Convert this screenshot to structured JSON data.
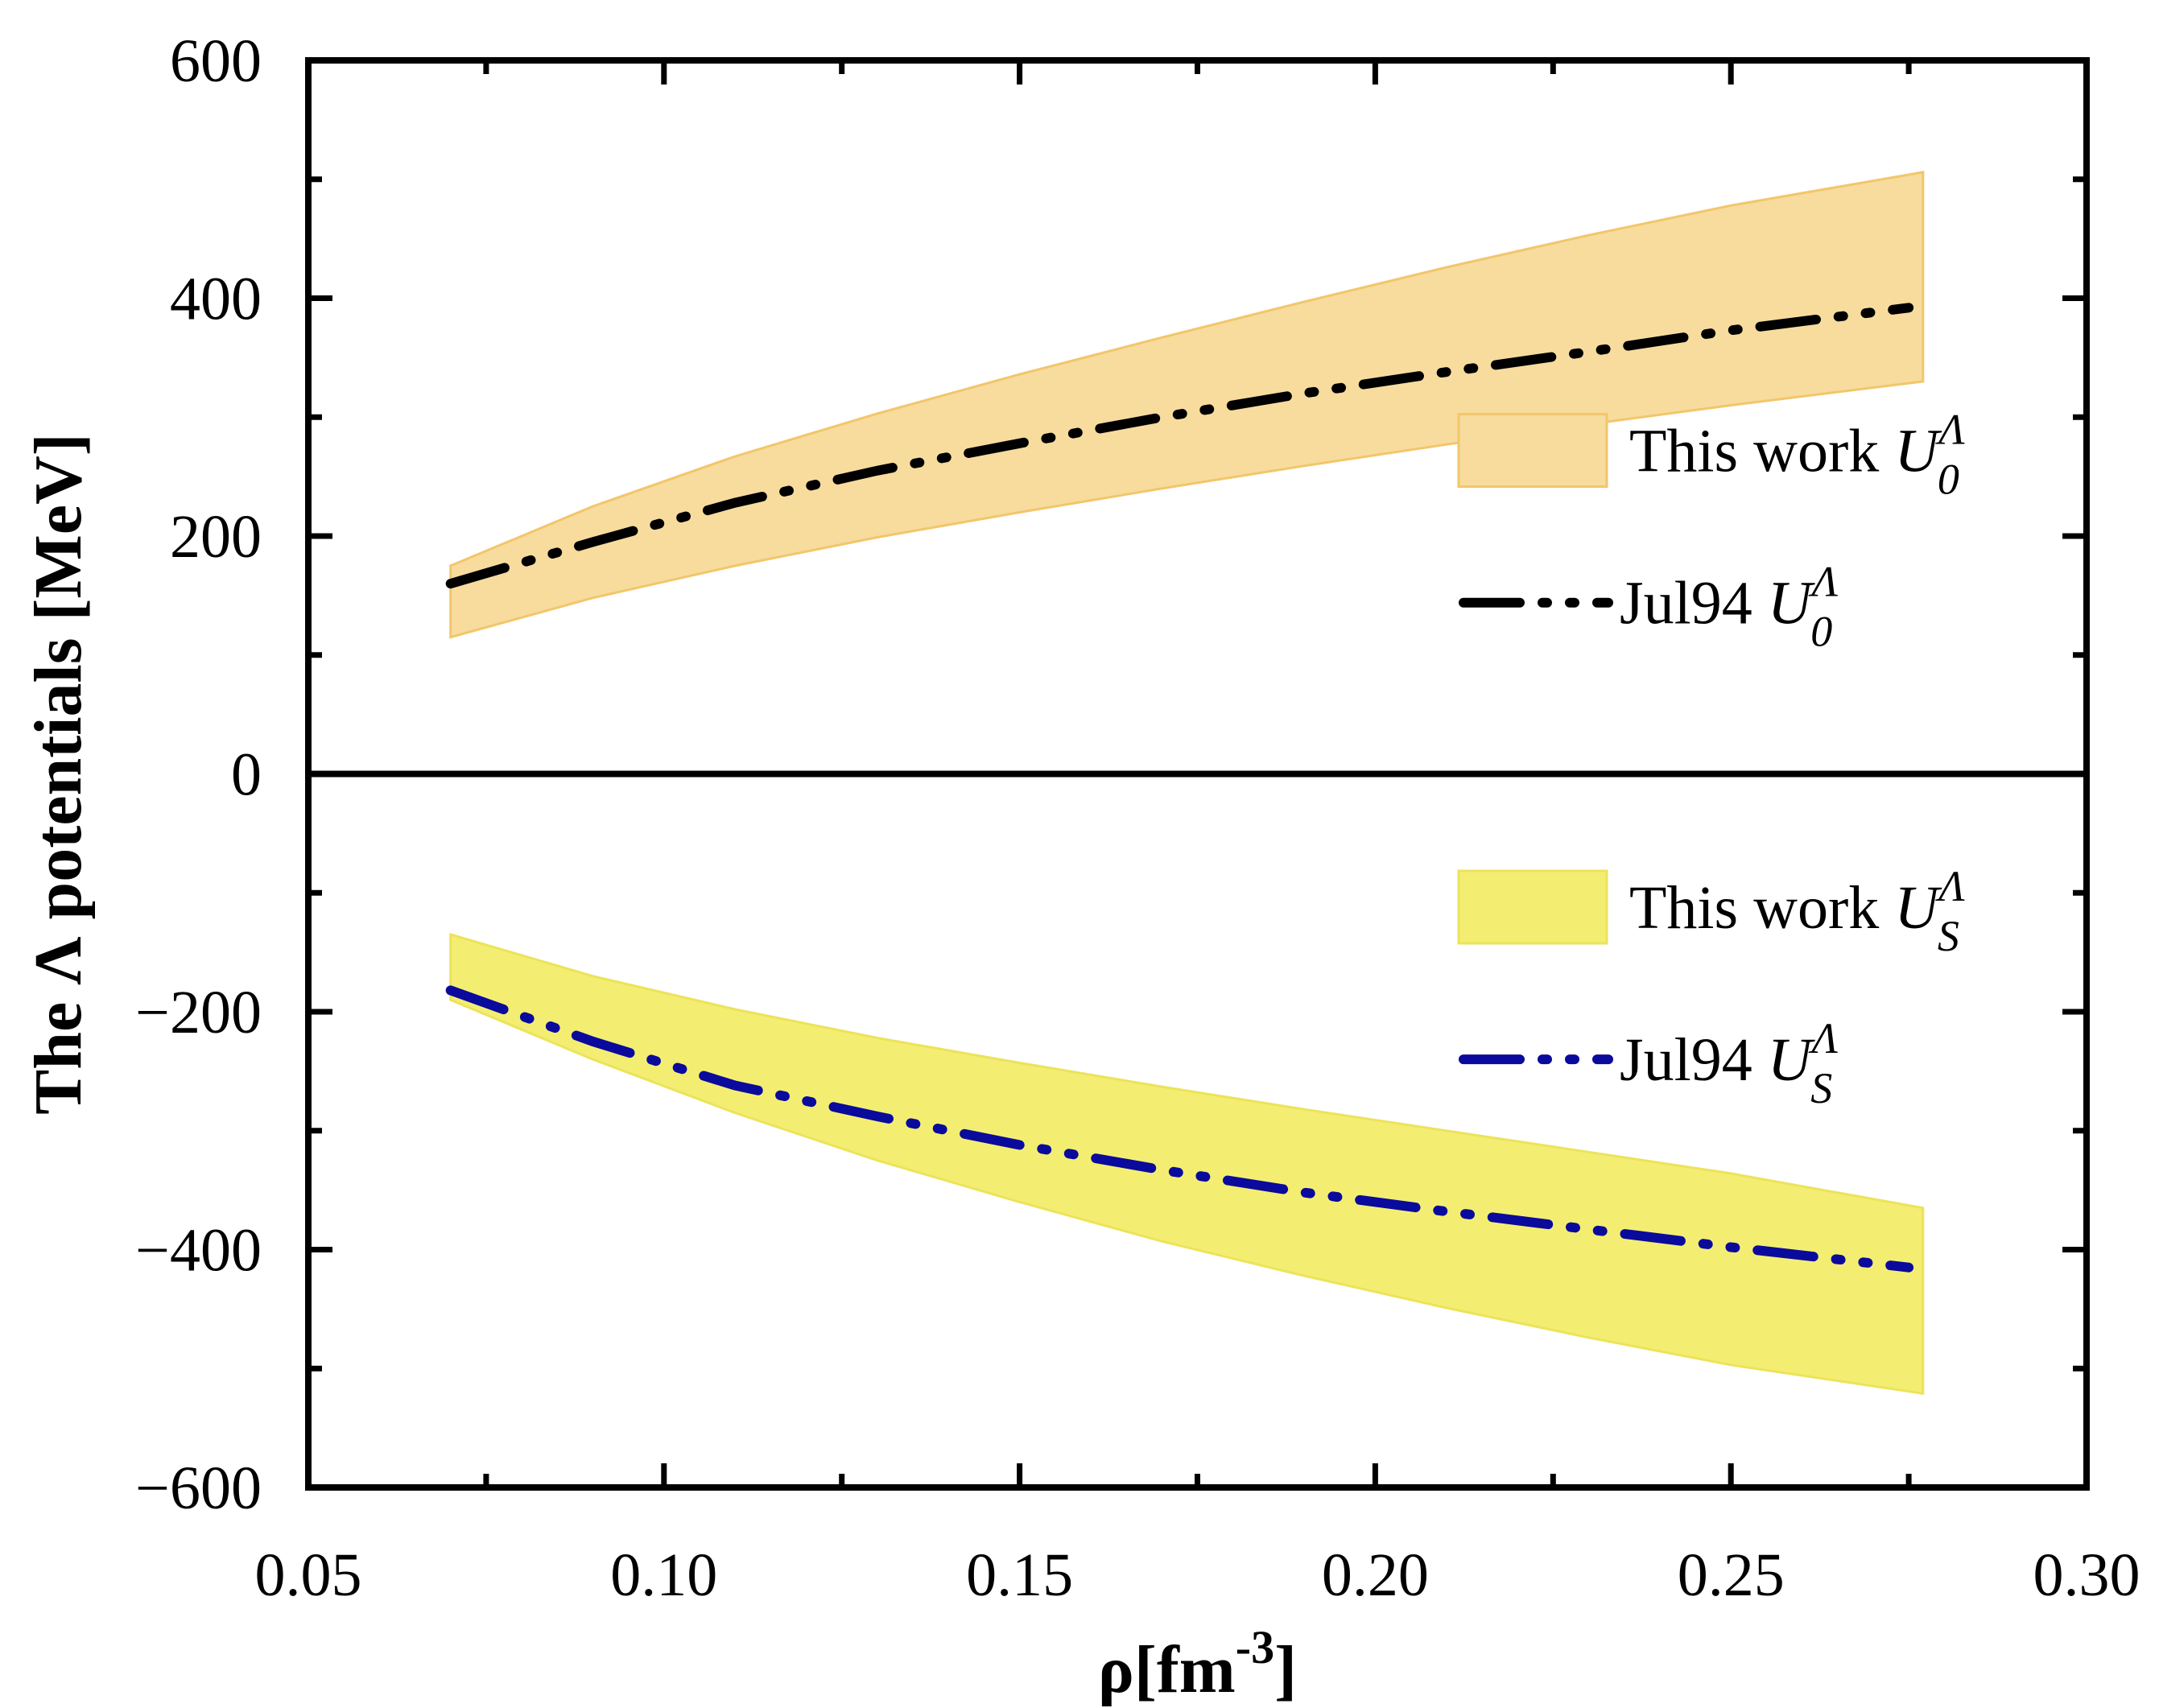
{
  "chart_data": {
    "type": "line",
    "xlabel": "ρ[fm",
    "xlabel_exponent": "-3",
    "xlabel_close": "]",
    "ylabel": "The Λ potentials [MeV]",
    "xlim": [
      0.05,
      0.3
    ],
    "ylim": [
      -600,
      600
    ],
    "x_ticks": [
      0.05,
      0.1,
      0.15,
      0.2,
      0.25,
      0.3
    ],
    "x_tick_labels": [
      "0.05",
      "0.10",
      "0.15",
      "0.20",
      "0.25",
      "0.30"
    ],
    "y_ticks": [
      -600,
      -400,
      -200,
      0,
      200,
      400,
      600
    ],
    "y_tick_labels": [
      "−600",
      "−400",
      "−200",
      "0",
      "200",
      "400",
      "600"
    ],
    "zero_line": true,
    "bands": [
      {
        "name": "This work U0Λ",
        "color": "#f7dc9e",
        "edge_color": "#f2c66a",
        "x": [
          0.07,
          0.09,
          0.11,
          0.13,
          0.15,
          0.17,
          0.19,
          0.21,
          0.23,
          0.25,
          0.277
        ],
        "upper": [
          175,
          225,
          267,
          303,
          336,
          367,
          397,
          426,
          453,
          478,
          506
        ],
        "lower": [
          115,
          148,
          175,
          199,
          220,
          240,
          259,
          277,
          294,
          310,
          330
        ]
      },
      {
        "name": "This work USΛ",
        "color": "#f3ee72",
        "edge_color": "#ece35a",
        "x": [
          0.07,
          0.09,
          0.11,
          0.13,
          0.15,
          0.17,
          0.19,
          0.21,
          0.23,
          0.25,
          0.277
        ],
        "upper": [
          -135,
          -170,
          -198,
          -222,
          -243,
          -263,
          -282,
          -300,
          -318,
          -336,
          -365
        ],
        "lower": [
          -190,
          -240,
          -285,
          -325,
          -360,
          -393,
          -422,
          -449,
          -474,
          -497,
          -521
        ]
      }
    ],
    "series": [
      {
        "name": "Jul94 U0Λ",
        "color": "#000000",
        "x": [
          0.07,
          0.09,
          0.11,
          0.13,
          0.15,
          0.17,
          0.19,
          0.21,
          0.23,
          0.25,
          0.275
        ],
        "y": [
          160,
          195,
          228,
          255,
          278,
          300,
          320,
          338,
          355,
          373,
          392
        ]
      },
      {
        "name": "Jul94 USΛ",
        "color": "#0a0a9c",
        "x": [
          0.07,
          0.09,
          0.11,
          0.13,
          0.15,
          0.17,
          0.19,
          0.21,
          0.23,
          0.25,
          0.275
        ],
        "y": [
          -182,
          -225,
          -262,
          -288,
          -312,
          -333,
          -352,
          -368,
          -383,
          -398,
          -415
        ]
      }
    ],
    "legend": [
      {
        "label_text": "This work ",
        "symbol": "U",
        "sub": "0",
        "sup": "Λ",
        "kind": "band",
        "color": "#f7dc9e",
        "edge": "#f2c66a"
      },
      {
        "label_text": "Jul94 ",
        "symbol": "U",
        "sub": "0",
        "sup": "Λ",
        "kind": "line",
        "color": "#000000"
      },
      {
        "label_text": "This work ",
        "symbol": "U",
        "sub": "S",
        "sup": "Λ",
        "kind": "band",
        "color": "#f3ee72",
        "edge": "#ece35a"
      },
      {
        "label_text": "Jul94 ",
        "symbol": "U",
        "sub": "S",
        "sup": "Λ",
        "kind": "line",
        "color": "#0a0a9c"
      }
    ]
  }
}
